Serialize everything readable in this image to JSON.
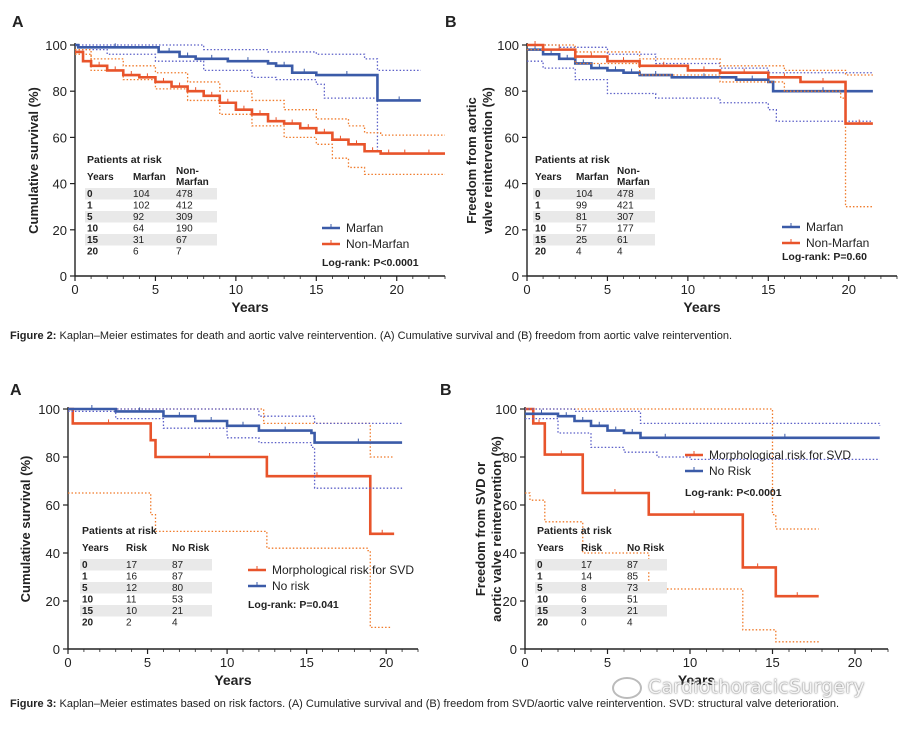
{
  "captions": {
    "fig2_label": "Figure 2:",
    "fig2_text": "Kaplan–Meier estimates for death and aortic valve reintervention. (A) Cumulative survival and (B) freedom from aortic valve reintervention.",
    "fig3_label": "Figure 3:",
    "fig3_text": "Kaplan–Meier estimates based on risk factors. (A) Cumulative survival and (B) freedom from SVD/aortic valve reintervention. SVD: structural valve deterioration."
  },
  "watermark": {
    "text": "CardiothoracicSurgery",
    "icon": "wechat-icon"
  },
  "colors": {
    "blue": "#3b5ba8",
    "red": "#e8542b",
    "ci_blue": "#5b5fc8",
    "ci_red": "#f07a2a"
  },
  "chart_data": [
    {
      "id": "fig2a",
      "panel_label": "A",
      "type": "line",
      "subtype": "kaplan-meier",
      "xlabel": "Years",
      "ylabel": "Cumulative survival (%)",
      "xlim": [
        0,
        23
      ],
      "ylim": [
        0,
        100
      ],
      "xticks": [
        0,
        5,
        10,
        15,
        20
      ],
      "yticks": [
        0,
        20,
        40,
        60,
        80,
        100
      ],
      "series": [
        {
          "name": "Marfan",
          "color": "blue",
          "x": [
            0,
            0.2,
            4.8,
            5.2,
            6.5,
            7.5,
            9.5,
            12,
            12.5,
            13.5,
            15,
            18.8,
            18.8,
            21.5
          ],
          "y": [
            100,
            99,
            99,
            97,
            95,
            94,
            93,
            92,
            91,
            88,
            87,
            85,
            76,
            76
          ],
          "ci_upper": {
            "x": [
              0,
              5,
              8,
              12,
              15,
              18,
              18.8,
              21.5
            ],
            "y": [
              100,
              100,
              98,
              97,
              96,
              94,
              89,
              89
            ]
          },
          "ci_lower": {
            "x": [
              0,
              2,
              5,
              8,
              11,
              12.5,
              15,
              15.5,
              18.8,
              18.8,
              18.8
            ],
            "y": [
              98,
              96,
              93,
              89,
              86,
              85,
              83,
              77,
              76,
              62,
              54
            ]
          }
        },
        {
          "name": "Non-Marfan",
          "color": "red",
          "x": [
            0,
            0.5,
            1,
            2,
            3,
            4,
            5,
            6,
            7,
            8,
            9,
            10,
            11,
            12,
            13,
            14,
            15,
            16,
            17,
            18,
            19,
            20,
            21,
            23
          ],
          "y": [
            97,
            93,
            91,
            89,
            87,
            86,
            84,
            82,
            80,
            78,
            75,
            72,
            70,
            67,
            66,
            64,
            62,
            59,
            57,
            54,
            53,
            53,
            53,
            53
          ],
          "ci_upper": {
            "x": [
              0,
              1,
              3,
              5,
              7,
              9,
              11,
              13,
              15,
              17,
              18,
              19,
              23
            ],
            "y": [
              98,
              94,
              91,
              88,
              84,
              80,
              76,
              72,
              68,
              65,
              62,
              61,
              61
            ]
          },
          "ci_lower": {
            "x": [
              0,
              1,
              3,
              5,
              7,
              9,
              11,
              13,
              15,
              16,
              17,
              18,
              23
            ],
            "y": [
              96,
              89,
              85,
              81,
              76,
              70,
              65,
              60,
              57,
              51,
              47,
              44,
              44
            ]
          }
        }
      ],
      "risk_table": {
        "title": "Patients at risk",
        "columns": [
          "Years",
          "Marfan",
          "Non-\nMarfan"
        ],
        "rows": [
          [
            "0",
            "104",
            "478"
          ],
          [
            "1",
            "102",
            "412"
          ],
          [
            "5",
            "92",
            "309"
          ],
          [
            "10",
            "64",
            "190"
          ],
          [
            "15",
            "31",
            "67"
          ],
          [
            "20",
            "6",
            "7"
          ]
        ]
      },
      "legend": [
        "Marfan",
        "Non-Marfan"
      ],
      "logrank": "Log-rank: P<0.0001"
    },
    {
      "id": "fig2b",
      "panel_label": "B",
      "type": "line",
      "subtype": "kaplan-meier",
      "xlabel": "Years",
      "ylabel": "Freedom from aortic\nvalve reintervention (%)",
      "xlim": [
        0,
        23
      ],
      "ylim": [
        0,
        100
      ],
      "xticks": [
        0,
        5,
        10,
        15,
        20
      ],
      "yticks": [
        0,
        20,
        40,
        60,
        80,
        100
      ],
      "series": [
        {
          "name": "Marfan",
          "color": "blue",
          "x": [
            0,
            1,
            2,
            3,
            4,
            5,
            6,
            7,
            9,
            13,
            15,
            15.3,
            21.5
          ],
          "y": [
            98,
            96,
            94,
            92,
            90,
            89,
            88,
            87,
            86,
            85,
            84,
            80,
            80
          ],
          "ci_upper": {
            "x": [
              0,
              2,
              5,
              8,
              12,
              15,
              21.5
            ],
            "y": [
              100,
              99,
              96,
              92,
              90,
              88,
              88
            ]
          },
          "ci_lower": {
            "x": [
              0,
              1,
              3,
              5,
              8,
              10,
              12,
              15,
              15.5,
              21.5
            ],
            "y": [
              93,
              90,
              85,
              79,
              77,
              77,
              75,
              72,
              67,
              67
            ]
          }
        },
        {
          "name": "Non-Marfan",
          "color": "red",
          "x": [
            0,
            1,
            3,
            5,
            7,
            10,
            12,
            15,
            17,
            19.8,
            19.8,
            21.5
          ],
          "y": [
            100,
            98,
            95,
            93,
            91,
            89,
            88,
            86,
            84,
            83,
            66,
            66
          ],
          "ci_upper": {
            "x": [
              0,
              3,
              7,
              12,
              16,
              19.8,
              21.5
            ],
            "y": [
              100,
              97,
              94,
              91,
              89,
              87,
              87
            ]
          },
          "ci_lower": {
            "x": [
              0,
              3,
              7,
              12,
              16,
              19.5,
              19.8,
              19.8,
              21.5
            ],
            "y": [
              98,
              92,
              87,
              84,
              80,
              77,
              75,
              30,
              30
            ]
          }
        }
      ],
      "risk_table": {
        "title": "Patients at risk",
        "columns": [
          "Years",
          "Marfan",
          "Non-\nMarfan"
        ],
        "rows": [
          [
            "0",
            "104",
            "478"
          ],
          [
            "1",
            "99",
            "421"
          ],
          [
            "5",
            "81",
            "307"
          ],
          [
            "10",
            "57",
            "177"
          ],
          [
            "15",
            "25",
            "61"
          ],
          [
            "20",
            "4",
            "4"
          ]
        ]
      },
      "legend": [
        "Marfan",
        "Non-Marfan"
      ],
      "logrank": "Log-rank: P=0.60"
    },
    {
      "id": "fig3a",
      "panel_label": "A",
      "type": "line",
      "subtype": "kaplan-meier",
      "xlabel": "Years",
      "ylabel": "Cumulative survival (%)",
      "xlim": [
        0,
        22
      ],
      "ylim": [
        0,
        100
      ],
      "xticks": [
        0,
        5,
        10,
        15,
        20
      ],
      "yticks": [
        0,
        20,
        40,
        60,
        80,
        100
      ],
      "series": [
        {
          "name": "Morphological risk for SVD",
          "color": "red",
          "x": [
            0,
            0.3,
            4.8,
            5.2,
            5.5,
            12.3,
            12.5,
            18.8,
            19,
            20.5
          ],
          "y": [
            100,
            94,
            94,
            87,
            80,
            80,
            72,
            72,
            48,
            48
          ],
          "ci_upper": {
            "x": [
              0,
              0.3,
              8,
              12.3,
              18.8,
              19,
              20.5
            ],
            "y": [
              100,
              100,
              100,
              94,
              94,
              80,
              80
            ]
          },
          "ci_lower": {
            "x": [
              0,
              0.3,
              4.8,
              5.2,
              5.5,
              12.3,
              12.5,
              18.8,
              19,
              20.3
            ],
            "y": [
              65,
              65,
              65,
              56,
              49,
              49,
              42,
              41,
              9,
              9
            ]
          }
        },
        {
          "name": "No risk",
          "color": "blue",
          "x": [
            0,
            3,
            6,
            8,
            10,
            12,
            15.3,
            15.5,
            21
          ],
          "y": [
            100,
            99,
            97,
            95,
            93,
            91,
            90,
            86,
            86
          ],
          "ci_upper": {
            "x": [
              0,
              6,
              12,
              15.5,
              21
            ],
            "y": [
              100,
              100,
              97,
              94,
              94
            ]
          },
          "ci_lower": {
            "x": [
              0,
              3,
              6,
              10,
              12,
              15.3,
              15.5,
              21
            ],
            "y": [
              99,
              96,
              92,
              88,
              86,
              84,
              67,
              67
            ]
          }
        }
      ],
      "risk_table": {
        "title": "Patients at risk",
        "columns": [
          "Years",
          "Risk",
          "No Risk"
        ],
        "rows": [
          [
            "0",
            "17",
            "87"
          ],
          [
            "1",
            "16",
            "87"
          ],
          [
            "5",
            "12",
            "80"
          ],
          [
            "10",
            "11",
            "53"
          ],
          [
            "15",
            "10",
            "21"
          ],
          [
            "20",
            "2",
            "4"
          ]
        ]
      },
      "legend": [
        "Morphological risk for SVD",
        "No risk"
      ],
      "logrank": "Log-rank: P=0.041"
    },
    {
      "id": "fig3b",
      "panel_label": "B",
      "type": "line",
      "subtype": "kaplan-meier",
      "xlabel": "Years",
      "ylabel": "Freedom from SVD or\naortic valve reintervention (%)",
      "xlim": [
        0,
        22
      ],
      "ylim": [
        0,
        100
      ],
      "xticks": [
        0,
        5,
        10,
        15,
        20
      ],
      "yticks": [
        0,
        20,
        40,
        60,
        80,
        100
      ],
      "series": [
        {
          "name": "Morphological risk for SVD",
          "color": "red",
          "x": [
            0,
            0.5,
            1.2,
            3.2,
            3.5,
            7.4,
            7.5,
            13,
            13.2,
            15,
            15.2,
            17.8
          ],
          "y": [
            100,
            94,
            81,
            81,
            65,
            65,
            56,
            56,
            34,
            34,
            22,
            22
          ],
          "ci_upper": {
            "x": [
              0,
              3.2,
              7.5,
              13,
              15,
              15.2,
              17.8
            ],
            "y": [
              100,
              100,
              100,
              100,
              56,
              50,
              50
            ]
          },
          "ci_lower": {
            "x": [
              0,
              0.3,
              1.2,
              3.2,
              3.5,
              7.4,
              7.5,
              13,
              13.2,
              15,
              15.2,
              17.8
            ],
            "y": [
              65,
              62,
              53,
              53,
              40,
              40,
              25,
              25,
              8,
              8,
              3,
              3
            ]
          }
        },
        {
          "name": "No Risk",
          "color": "blue",
          "x": [
            0,
            2,
            3,
            4,
            5,
            6,
            7,
            10,
            21.5
          ],
          "y": [
            98,
            97,
            95,
            93,
            91,
            90,
            88,
            88,
            88
          ],
          "ci_upper": {
            "x": [
              0,
              3,
              7,
              21.5
            ],
            "y": [
              100,
              99,
              94,
              93
            ]
          },
          "ci_lower": {
            "x": [
              0,
              2,
              4,
              6,
              8,
              10,
              21.5
            ],
            "y": [
              96,
              90,
              84,
              82,
              80,
              79,
              79
            ]
          }
        }
      ],
      "risk_table": {
        "title": "Patients at risk",
        "columns": [
          "Years",
          "Risk",
          "No Risk"
        ],
        "rows": [
          [
            "0",
            "17",
            "87"
          ],
          [
            "1",
            "14",
            "85"
          ],
          [
            "5",
            "8",
            "73"
          ],
          [
            "10",
            "6",
            "51"
          ],
          [
            "15",
            "3",
            "21"
          ],
          [
            "20",
            "0",
            "4"
          ]
        ]
      },
      "legend": [
        "Morphological risk for SVD",
        "No Risk"
      ],
      "logrank": "Log-rank: P<0.0001"
    }
  ]
}
